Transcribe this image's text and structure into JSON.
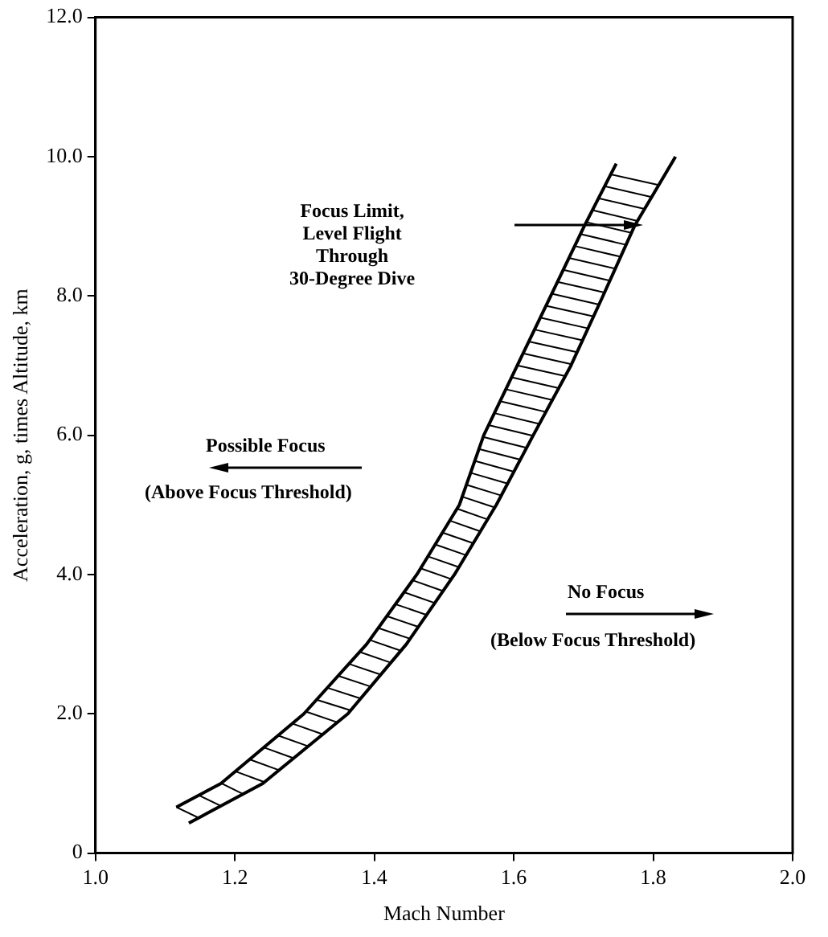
{
  "chart_data": {
    "type": "line",
    "xlabel": "Mach Number",
    "ylabel": "Acceleration, g, times Altitude, km",
    "series": [
      {
        "color": "#000000",
        "x": [
          1.116,
          1.18,
          1.299,
          1.389,
          1.461,
          1.522,
          1.557,
          1.605,
          1.653,
          1.701,
          1.747
        ],
        "values": [
          0.66,
          1.0,
          2.0,
          3.0,
          4.0,
          5.0,
          6.0,
          7.0,
          8.0,
          9.0,
          9.9
        ]
      },
      {
        "color": "#000000",
        "x": [
          1.134,
          1.24,
          1.362,
          1.446,
          1.515,
          1.575,
          1.628,
          1.682,
          1.728,
          1.773,
          1.832
        ],
        "values": [
          0.43,
          1.0,
          2.0,
          3.0,
          4.0,
          5.0,
          6.0,
          7.0,
          8.0,
          9.0,
          10.0
        ]
      }
    ],
    "xlim": [
      1.0,
      2.0
    ],
    "xticks": [
      {
        "value": 1.0,
        "label": "1.0"
      },
      {
        "value": 1.2,
        "label": "1.2"
      },
      {
        "value": 1.4,
        "label": "1.4"
      },
      {
        "value": 1.6,
        "label": "1.6"
      },
      {
        "value": 1.8,
        "label": "1.8"
      },
      {
        "value": 2.0,
        "label": "2.0"
      }
    ],
    "ylim": [
      0,
      12
    ],
    "yticks": [
      0,
      {
        "value": 2,
        "label": "2.0"
      },
      {
        "value": 4,
        "label": "4.0"
      },
      {
        "value": 6,
        "label": "6.0"
      },
      {
        "value": 8,
        "label": "8.0"
      },
      {
        "value": 10,
        "label": "10.0"
      },
      {
        "value": 12,
        "label": "12.0"
      }
    ],
    "annotations": [
      "Focus Limit,\nLevel Flight\nThrough\n30-Degree Dive",
      "Possible Focus",
      "(Above Focus Threshold)",
      "No Focus",
      "(Below Focus Threshold)"
    ],
    "grid": false,
    "legend": false,
    "marker": "none",
    "line_style": "solid"
  }
}
